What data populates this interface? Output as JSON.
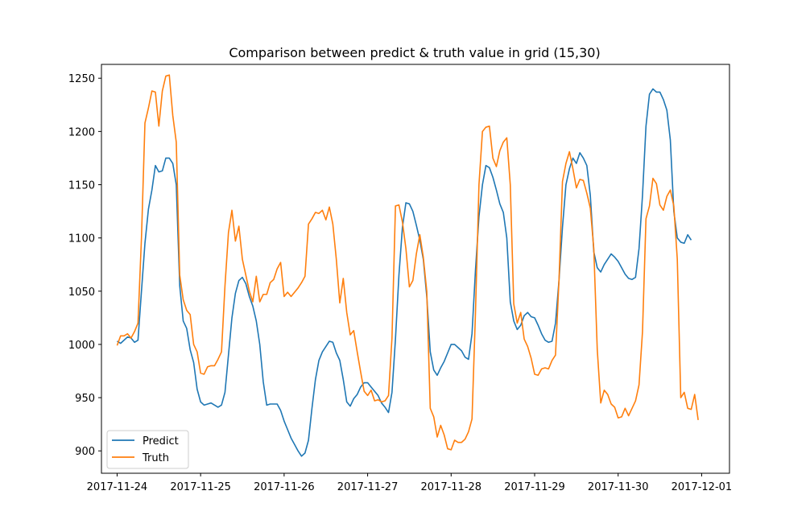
{
  "chart_data": {
    "type": "line",
    "title": "Comparison between predict & truth value in grid (15,30)",
    "xlabel": "",
    "ylabel": "",
    "x_tick_labels": [
      "2017-11-24",
      "2017-11-25",
      "2017-11-26",
      "2017-11-27",
      "2017-11-28",
      "2017-11-29",
      "2017-11-30",
      "2017-12-01"
    ],
    "y_ticks": [
      900,
      950,
      1000,
      1050,
      1100,
      1150,
      1200,
      1250
    ],
    "xlim": [
      "2017-11-23T19:30",
      "2017-12-01T08:00"
    ],
    "ylim": [
      879,
      1263
    ],
    "grid": false,
    "legend_position": "lower-left",
    "x_start": "2017-11-24T00:00",
    "x_step_hours": 1,
    "series": [
      {
        "name": "Predict",
        "color": "#1f77b4",
        "values": [
          1003,
          1001,
          1004,
          1007,
          1006,
          1002,
          1004,
          1050,
          1095,
          1127,
          1145,
          1168,
          1162,
          1163,
          1175,
          1175,
          1170,
          1150,
          1055,
          1022,
          1015,
          995,
          983,
          958,
          946,
          943,
          944,
          945,
          943,
          941,
          943,
          955,
          990,
          1025,
          1048,
          1060,
          1063,
          1057,
          1045,
          1036,
          1022,
          1000,
          965,
          943,
          944,
          944,
          944,
          938,
          928,
          920,
          912,
          906,
          900,
          895,
          898,
          910,
          940,
          967,
          985,
          993,
          998,
          1003,
          1002,
          992,
          985,
          967,
          946,
          942,
          949,
          953,
          960,
          964,
          964,
          960,
          956,
          952,
          945,
          941,
          936,
          955,
          1005,
          1065,
          1110,
          1133,
          1132,
          1125,
          1112,
          1098,
          1080,
          1045,
          993,
          976,
          971,
          978,
          984,
          992,
          1000,
          1000,
          997,
          994,
          988,
          986,
          1010,
          1070,
          1120,
          1150,
          1168,
          1166,
          1157,
          1145,
          1132,
          1124,
          1100,
          1040,
          1022,
          1014,
          1018,
          1027,
          1030,
          1026,
          1025,
          1018,
          1010,
          1004,
          1002,
          1003,
          1020,
          1060,
          1110,
          1150,
          1165,
          1175,
          1170,
          1180,
          1175,
          1168,
          1140,
          1087,
          1072,
          1068,
          1075,
          1080,
          1085,
          1082,
          1078,
          1072,
          1066,
          1062,
          1061,
          1063,
          1090,
          1140,
          1205,
          1235,
          1240,
          1237,
          1237,
          1230,
          1220,
          1192,
          1125,
          1100,
          1096,
          1095,
          1103,
          1098
        ]
      },
      {
        "name": "Truth",
        "color": "#ff7f0e",
        "values": [
          999,
          1008,
          1008,
          1010,
          1006,
          1012,
          1020,
          1100,
          1208,
          1222,
          1238,
          1237,
          1205,
          1238,
          1252,
          1253,
          1215,
          1190,
          1065,
          1042,
          1032,
          1028,
          1000,
          993,
          973,
          972,
          979,
          980,
          980,
          986,
          993,
          1055,
          1105,
          1126,
          1097,
          1111,
          1080,
          1065,
          1050,
          1040,
          1064,
          1040,
          1047,
          1047,
          1058,
          1061,
          1071,
          1077,
          1045,
          1049,
          1045,
          1049,
          1053,
          1058,
          1064,
          1113,
          1118,
          1124,
          1123,
          1126,
          1117,
          1129,
          1113,
          1080,
          1039,
          1062,
          1030,
          1009,
          1013,
          993,
          974,
          956,
          952,
          957,
          947,
          948,
          946,
          947,
          952,
          1006,
          1130,
          1131,
          1115,
          1090,
          1054,
          1060,
          1085,
          1103,
          1082,
          1050,
          940,
          932,
          913,
          924,
          915,
          902,
          901,
          910,
          908,
          908,
          911,
          918,
          930,
          1030,
          1150,
          1200,
          1204,
          1205,
          1175,
          1167,
          1182,
          1190,
          1194,
          1150,
          1038,
          1020,
          1030,
          1005,
          998,
          987,
          972,
          971,
          977,
          978,
          977,
          985,
          990,
          1060,
          1153,
          1170,
          1181,
          1165,
          1147,
          1155,
          1154,
          1142,
          1128,
          1090,
          995,
          945,
          957,
          953,
          944,
          941,
          931,
          932,
          940,
          933,
          940,
          947,
          962,
          1012,
          1118,
          1130,
          1156,
          1151,
          1131,
          1126,
          1139,
          1145,
          1130,
          1080,
          950,
          955,
          940,
          939,
          953,
          929
        ]
      }
    ]
  }
}
